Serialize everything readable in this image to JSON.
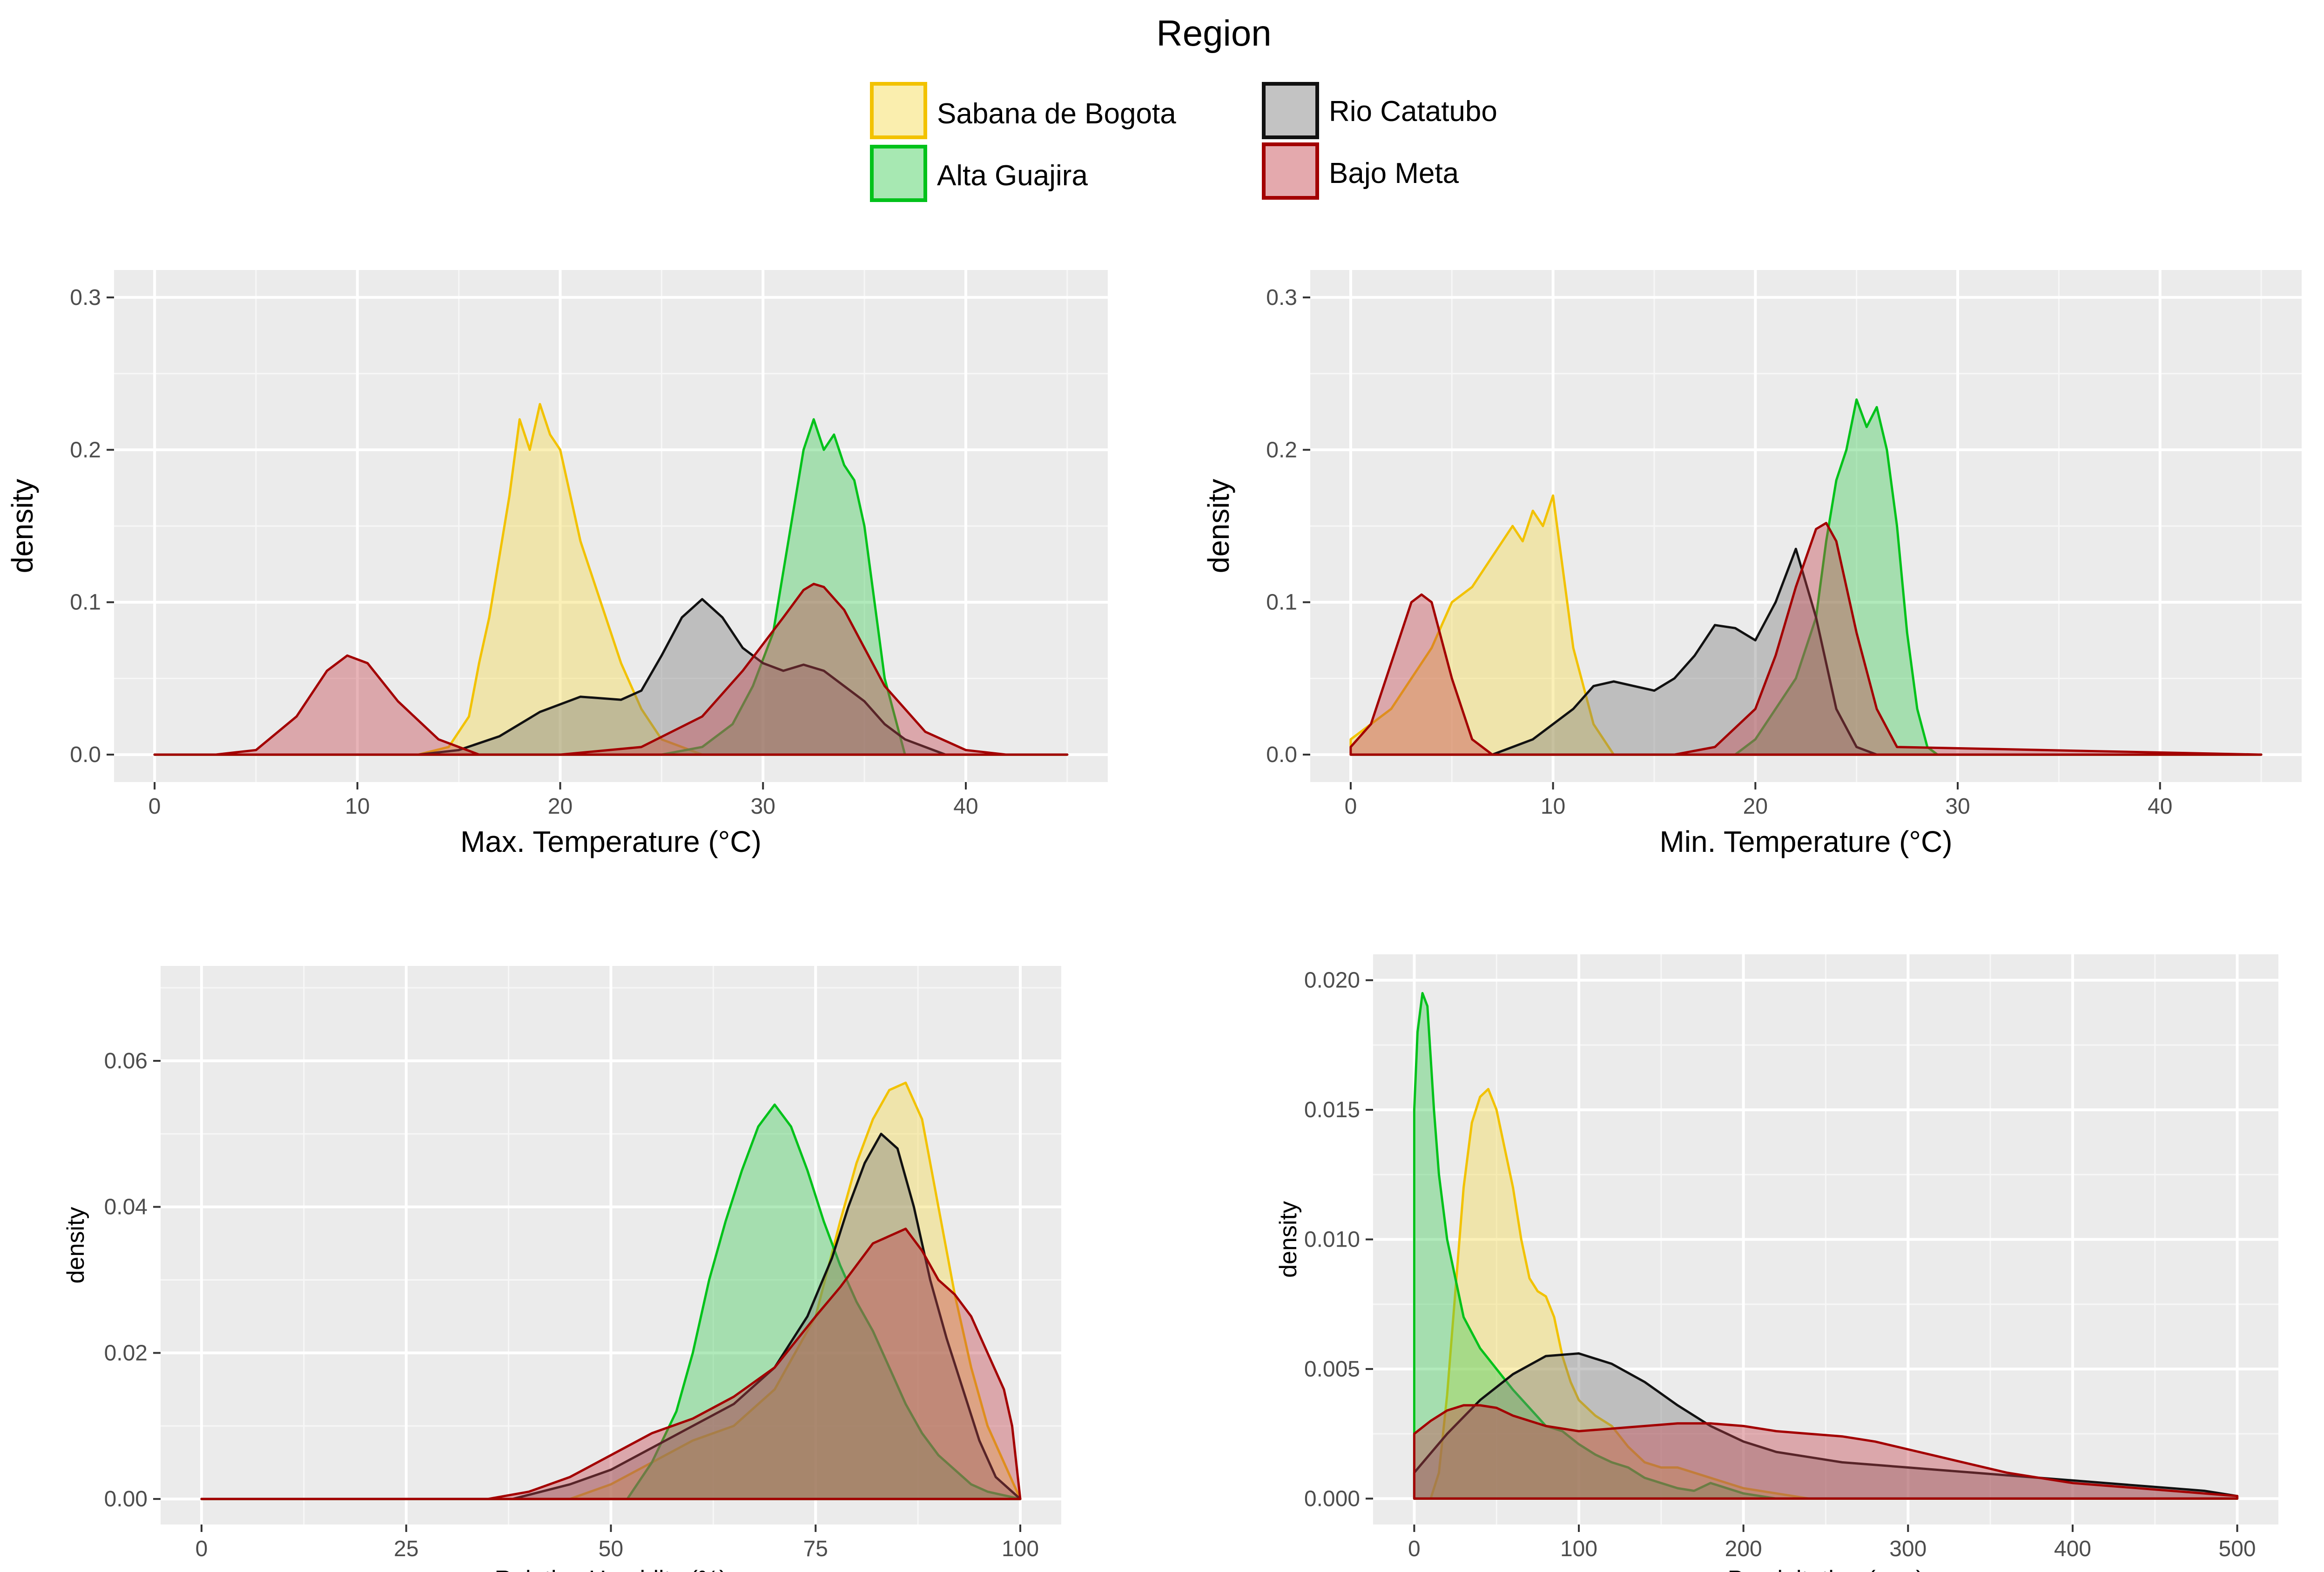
{
  "legend": {
    "title": "Region",
    "items": [
      {
        "key": "sabana",
        "label": "Sabana de Bogota",
        "fill": "#F5D94B",
        "stroke": "#F2C200"
      },
      {
        "key": "guajira",
        "label": "Alta Guajira",
        "fill": "#3CCB55",
        "stroke": "#00C21A"
      },
      {
        "key": "catatubo",
        "label": "Rio Catatubo",
        "fill": "#7A7A7A",
        "stroke": "#111111"
      },
      {
        "key": "meta",
        "label": "Bajo Meta",
        "fill": "#C3404A",
        "stroke": "#A30000"
      }
    ]
  },
  "chart_data": [
    {
      "type": "area",
      "id": "maxtemp",
      "title": "",
      "xlabel": "Max. Temperature (°C)",
      "ylabel": "density",
      "xlim": [
        -2,
        47
      ],
      "ylim": [
        -0.018,
        0.318
      ],
      "xticks": [
        0,
        10,
        20,
        30,
        40
      ],
      "yticks": [
        0.0,
        0.1,
        0.2,
        0.3
      ],
      "ytick_labels": [
        "0.0",
        "0.1",
        "0.2",
        "0.3"
      ],
      "series": [
        {
          "name": "Sabana de Bogota",
          "x": [
            0,
            13,
            14.5,
            15.5,
            16,
            16.5,
            17,
            17.5,
            18,
            18.5,
            19,
            19.5,
            20,
            20.5,
            21,
            21.5,
            22,
            23,
            24,
            25,
            27,
            45
          ],
          "y": [
            0,
            0,
            0.005,
            0.025,
            0.06,
            0.09,
            0.13,
            0.17,
            0.22,
            0.2,
            0.23,
            0.21,
            0.2,
            0.17,
            0.14,
            0.12,
            0.1,
            0.06,
            0.03,
            0.01,
            0,
            0
          ]
        },
        {
          "name": "Alta Guajira",
          "x": [
            0,
            25,
            27,
            28.5,
            29.5,
            30.5,
            31.5,
            32,
            32.5,
            33,
            33.5,
            34,
            34.5,
            35,
            35.5,
            36,
            37,
            45
          ],
          "y": [
            0,
            0,
            0.005,
            0.02,
            0.045,
            0.08,
            0.16,
            0.2,
            0.22,
            0.2,
            0.21,
            0.19,
            0.18,
            0.15,
            0.1,
            0.05,
            0,
            0
          ]
        },
        {
          "name": "Rio Catatubo",
          "x": [
            0,
            13,
            15,
            17,
            19,
            21,
            23,
            24,
            25,
            26,
            27,
            28,
            29,
            30,
            31,
            32,
            33,
            34,
            35,
            36,
            37,
            39,
            45
          ],
          "y": [
            0,
            0,
            0.003,
            0.012,
            0.028,
            0.038,
            0.036,
            0.042,
            0.065,
            0.09,
            0.102,
            0.09,
            0.07,
            0.06,
            0.055,
            0.059,
            0.055,
            0.045,
            0.035,
            0.02,
            0.01,
            0,
            0
          ]
        },
        {
          "name": "Bajo Meta",
          "x": [
            0,
            3,
            5,
            7,
            8.5,
            9.5,
            10.5,
            12,
            14,
            16,
            20,
            24,
            27,
            29,
            31,
            32,
            32.5,
            33,
            34,
            35,
            36,
            38,
            40,
            42,
            45
          ],
          "y": [
            0,
            0,
            0.003,
            0.025,
            0.055,
            0.065,
            0.06,
            0.035,
            0.01,
            0,
            0,
            0.005,
            0.025,
            0.055,
            0.09,
            0.108,
            0.112,
            0.11,
            0.095,
            0.07,
            0.045,
            0.015,
            0.003,
            0,
            0
          ]
        }
      ]
    },
    {
      "type": "area",
      "id": "mintemp",
      "title": "",
      "xlabel": "Min. Temperature (°C)",
      "ylabel": "density",
      "xlim": [
        -2,
        47
      ],
      "ylim": [
        -0.018,
        0.318
      ],
      "xticks": [
        0,
        10,
        20,
        30,
        40
      ],
      "yticks": [
        0.0,
        0.1,
        0.2,
        0.3
      ],
      "ytick_labels": [
        "0.0",
        "0.1",
        "0.2",
        "0.3"
      ],
      "series": [
        {
          "name": "Sabana de Bogota",
          "x": [
            0,
            1,
            2,
            3,
            4,
            5,
            6,
            7,
            8,
            8.5,
            9,
            9.5,
            10,
            10.5,
            11,
            12,
            13,
            45
          ],
          "y": [
            0.01,
            0.02,
            0.03,
            0.05,
            0.07,
            0.1,
            0.11,
            0.13,
            0.15,
            0.14,
            0.16,
            0.15,
            0.17,
            0.12,
            0.07,
            0.02,
            0,
            0
          ]
        },
        {
          "name": "Alta Guajira",
          "x": [
            0,
            19,
            20,
            21,
            22,
            23,
            23.5,
            24,
            24.5,
            25,
            25.5,
            26,
            26.5,
            27,
            27.5,
            28,
            28.5,
            29,
            45
          ],
          "y": [
            0,
            0,
            0.01,
            0.03,
            0.05,
            0.09,
            0.14,
            0.18,
            0.2,
            0.233,
            0.215,
            0.228,
            0.2,
            0.15,
            0.08,
            0.03,
            0.005,
            0,
            0
          ]
        },
        {
          "name": "Rio Catatubo",
          "x": [
            0,
            7,
            9,
            10,
            11,
            12,
            13,
            14,
            15,
            16,
            17,
            18,
            19,
            20,
            21,
            22,
            23,
            24,
            25,
            26,
            45
          ],
          "y": [
            0,
            0,
            0.01,
            0.02,
            0.03,
            0.045,
            0.048,
            0.045,
            0.042,
            0.05,
            0.065,
            0.085,
            0.083,
            0.075,
            0.1,
            0.135,
            0.09,
            0.03,
            0.005,
            0,
            0
          ]
        },
        {
          "name": "Bajo Meta",
          "x": [
            0,
            1,
            2,
            3,
            3.5,
            4,
            5,
            6,
            7,
            12,
            16,
            18,
            20,
            21,
            22,
            23,
            23.5,
            24,
            25,
            26,
            27,
            45
          ],
          "y": [
            0.005,
            0.02,
            0.06,
            0.1,
            0.105,
            0.1,
            0.05,
            0.01,
            0,
            0,
            0,
            0.005,
            0.03,
            0.065,
            0.11,
            0.148,
            0.152,
            0.14,
            0.08,
            0.03,
            0.005,
            0
          ]
        }
      ]
    },
    {
      "type": "area",
      "id": "humidity",
      "title": "",
      "xlabel": "Relative Humidity (%)",
      "ylabel": "density",
      "xlim": [
        -5,
        105
      ],
      "ylim": [
        -0.0035,
        0.073
      ],
      "xticks": [
        0,
        25,
        50,
        75,
        100
      ],
      "yticks": [
        0.0,
        0.02,
        0.04,
        0.06
      ],
      "ytick_labels": [
        "0.00",
        "0.02",
        "0.04",
        "0.06"
      ],
      "series": [
        {
          "name": "Sabana de Bogota",
          "x": [
            0,
            45,
            50,
            55,
            60,
            65,
            70,
            75,
            78,
            80,
            82,
            84,
            86,
            88,
            90,
            92,
            94,
            96,
            98,
            100
          ],
          "y": [
            0,
            0,
            0.002,
            0.005,
            0.008,
            0.01,
            0.015,
            0.025,
            0.038,
            0.046,
            0.052,
            0.056,
            0.057,
            0.052,
            0.04,
            0.028,
            0.018,
            0.01,
            0.005,
            0
          ]
        },
        {
          "name": "Alta Guajira",
          "x": [
            0,
            52,
            55,
            58,
            60,
            62,
            64,
            66,
            68,
            70,
            72,
            74,
            76,
            78,
            80,
            82,
            84,
            86,
            88,
            90,
            92,
            94,
            96,
            100
          ],
          "y": [
            0,
            0,
            0.005,
            0.012,
            0.02,
            0.03,
            0.038,
            0.045,
            0.051,
            0.054,
            0.051,
            0.045,
            0.038,
            0.032,
            0.027,
            0.023,
            0.018,
            0.013,
            0.009,
            0.006,
            0.004,
            0.002,
            0.001,
            0
          ]
        },
        {
          "name": "Rio Catatubo",
          "x": [
            0,
            38,
            45,
            50,
            55,
            60,
            65,
            70,
            74,
            77,
            79,
            81,
            83,
            85,
            87,
            89,
            91,
            93,
            95,
            97,
            100
          ],
          "y": [
            0,
            0,
            0.002,
            0.004,
            0.007,
            0.01,
            0.013,
            0.018,
            0.025,
            0.033,
            0.04,
            0.046,
            0.05,
            0.048,
            0.04,
            0.03,
            0.022,
            0.015,
            0.008,
            0.003,
            0
          ]
        },
        {
          "name": "Bajo Meta",
          "x": [
            0,
            35,
            40,
            45,
            50,
            55,
            60,
            65,
            70,
            75,
            78,
            80,
            82,
            84,
            86,
            88,
            90,
            92,
            94,
            96,
            98,
            99,
            100
          ],
          "y": [
            0,
            0,
            0.001,
            0.003,
            0.006,
            0.009,
            0.011,
            0.014,
            0.018,
            0.025,
            0.029,
            0.032,
            0.035,
            0.036,
            0.037,
            0.034,
            0.03,
            0.028,
            0.025,
            0.02,
            0.015,
            0.01,
            0
          ]
        }
      ]
    },
    {
      "type": "area",
      "id": "precip",
      "title": "",
      "xlabel": "Precipitation (mm)",
      "ylabel": "density",
      "xlim": [
        -25,
        525
      ],
      "ylim": [
        -0.001,
        0.021
      ],
      "xticks": [
        0,
        100,
        200,
        300,
        400,
        500
      ],
      "yticks": [
        0.0,
        0.005,
        0.01,
        0.015,
        0.02
      ],
      "ytick_labels": [
        "0.000",
        "0.005",
        "0.010",
        "0.015",
        "0.020"
      ],
      "series": [
        {
          "name": "Sabana de Bogota",
          "x": [
            0,
            10,
            15,
            20,
            25,
            30,
            35,
            40,
            45,
            50,
            55,
            60,
            65,
            70,
            75,
            80,
            85,
            90,
            95,
            100,
            110,
            120,
            130,
            140,
            150,
            160,
            180,
            200,
            220,
            240,
            500
          ],
          "y": [
            0,
            0,
            0.001,
            0.004,
            0.008,
            0.012,
            0.0145,
            0.0155,
            0.0158,
            0.015,
            0.0135,
            0.012,
            0.01,
            0.0085,
            0.008,
            0.0078,
            0.007,
            0.0055,
            0.0045,
            0.0038,
            0.0032,
            0.0028,
            0.002,
            0.0014,
            0.0012,
            0.0012,
            0.0008,
            0.0004,
            0.0002,
            0,
            0
          ]
        },
        {
          "name": "Alta Guajira",
          "x": [
            0,
            2,
            5,
            8,
            10,
            12,
            15,
            20,
            25,
            30,
            40,
            50,
            60,
            70,
            80,
            90,
            100,
            110,
            120,
            130,
            140,
            160,
            170,
            180,
            190,
            200,
            220,
            500
          ],
          "y": [
            0.015,
            0.018,
            0.0195,
            0.019,
            0.017,
            0.015,
            0.0125,
            0.01,
            0.0085,
            0.007,
            0.0058,
            0.005,
            0.0042,
            0.0035,
            0.0028,
            0.0026,
            0.0021,
            0.0017,
            0.0014,
            0.0012,
            0.0008,
            0.0004,
            0.0003,
            0.0006,
            0.0004,
            0.0002,
            0,
            0
          ]
        },
        {
          "name": "Rio Catatubo",
          "x": [
            0,
            20,
            40,
            60,
            80,
            100,
            120,
            140,
            160,
            180,
            200,
            220,
            240,
            260,
            280,
            300,
            320,
            340,
            360,
            380,
            400,
            420,
            440,
            460,
            480,
            500
          ],
          "y": [
            0.001,
            0.0025,
            0.0038,
            0.0048,
            0.0055,
            0.0056,
            0.0052,
            0.0045,
            0.0036,
            0.0028,
            0.0022,
            0.0018,
            0.0016,
            0.0014,
            0.0013,
            0.0012,
            0.0011,
            0.001,
            0.0009,
            0.0008,
            0.0007,
            0.0006,
            0.0005,
            0.0004,
            0.0003,
            0.0001
          ]
        },
        {
          "name": "Bajo Meta",
          "x": [
            0,
            10,
            20,
            30,
            40,
            50,
            60,
            80,
            100,
            120,
            140,
            160,
            180,
            200,
            220,
            240,
            260,
            280,
            300,
            320,
            340,
            360,
            380,
            400,
            420,
            440,
            460,
            480,
            500
          ],
          "y": [
            0.0025,
            0.003,
            0.0034,
            0.0036,
            0.0036,
            0.0035,
            0.0032,
            0.0028,
            0.0026,
            0.0027,
            0.0028,
            0.0029,
            0.0029,
            0.0028,
            0.0026,
            0.0025,
            0.0024,
            0.0022,
            0.0019,
            0.0016,
            0.0013,
            0.001,
            0.0008,
            0.0006,
            0.0005,
            0.0004,
            0.0003,
            0.0002,
            0.0001
          ]
        }
      ]
    }
  ]
}
